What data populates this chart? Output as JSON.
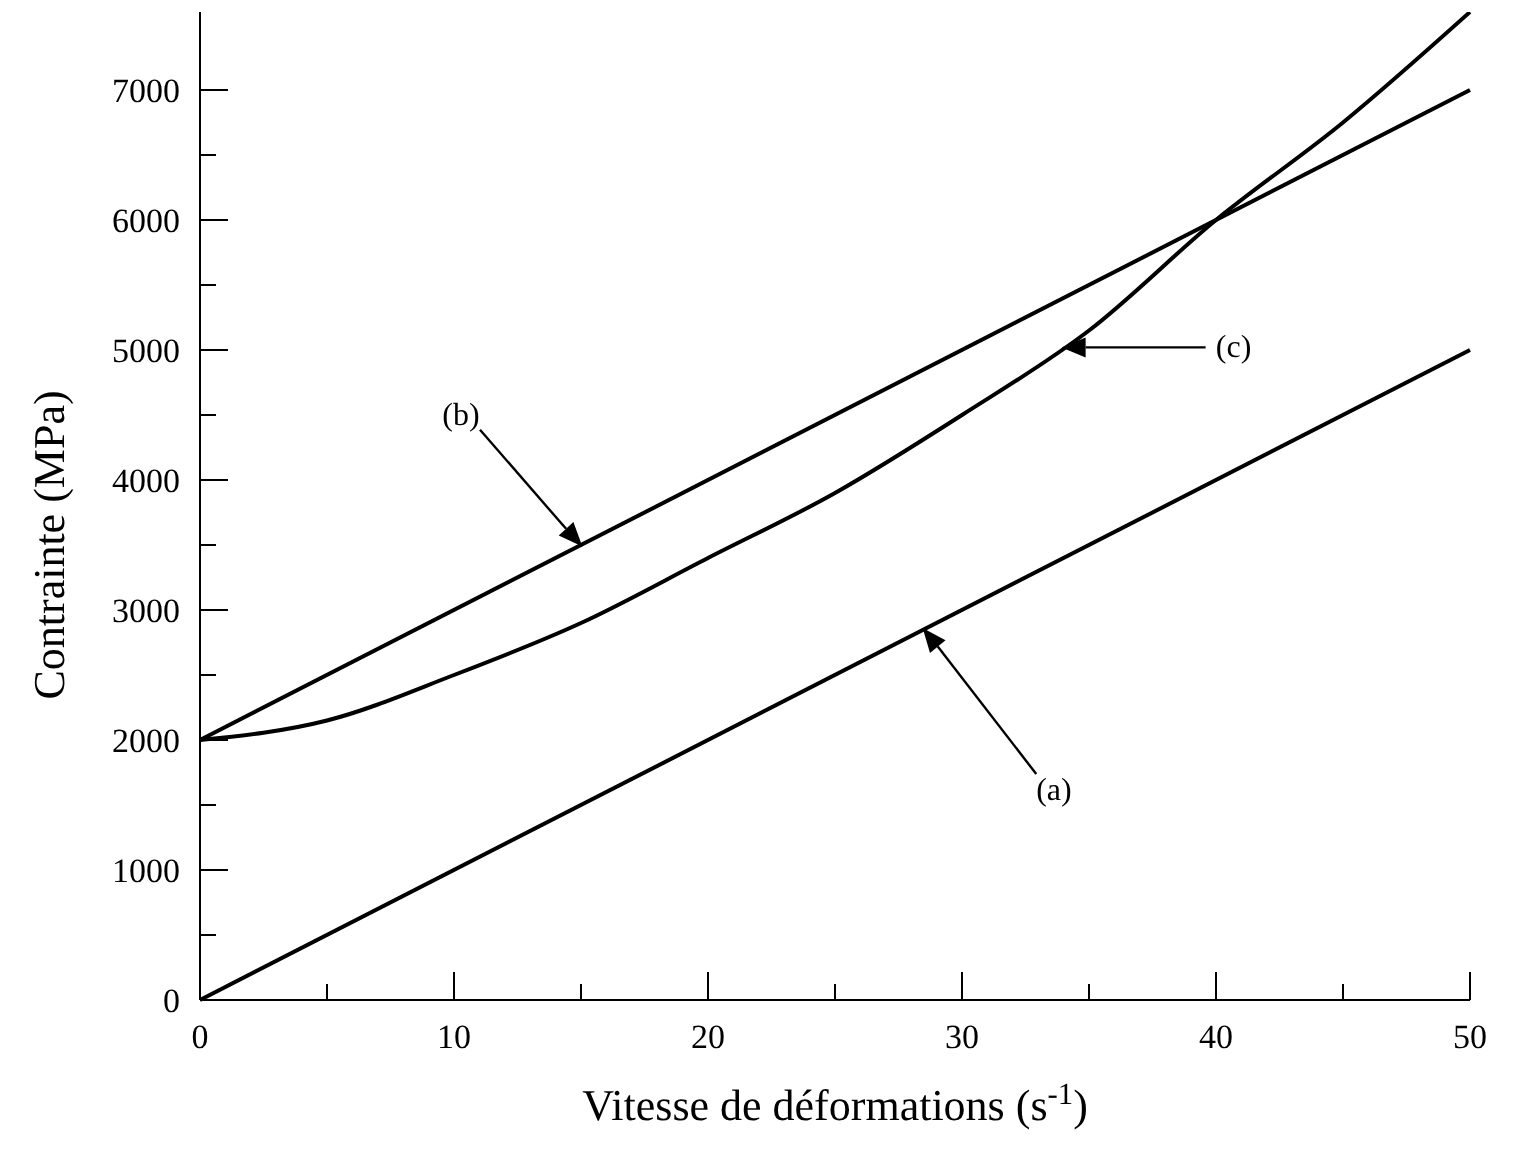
{
  "chart_data": {
    "type": "line",
    "xlabel": "Vitesse de déformations (s$^{-1}$)",
    "ylabel": "Contrainte (MPa)",
    "xlim": [
      0,
      50
    ],
    "ylim": [
      0,
      7600
    ],
    "xticks": [
      0,
      {
        "value": 5,
        "label": null
      },
      10,
      {
        "value": 15,
        "label": null
      },
      20,
      {
        "value": 25,
        "label": null
      },
      30,
      {
        "value": 35,
        "label": null
      },
      40,
      {
        "value": 45,
        "label": null
      },
      50
    ],
    "yticks": [
      0,
      {
        "value": 500,
        "label": null
      },
      1000,
      {
        "value": 1500,
        "label": null
      },
      2000,
      {
        "value": 2500,
        "label": null
      },
      3000,
      {
        "value": 3500,
        "label": null
      },
      4000,
      {
        "value": 4500,
        "label": null
      },
      5000,
      {
        "value": 5500,
        "label": null
      },
      6000,
      {
        "value": 6500,
        "label": null
      },
      7000
    ],
    "grid": false,
    "marker": "none",
    "line_style": "solid",
    "series": [
      {
        "color": "#000000",
        "x": [
          0,
          50
        ],
        "values": [
          0,
          5000
        ]
      },
      {
        "color": "#000000",
        "x": [
          0,
          50
        ],
        "values": [
          2000,
          7000
        ]
      },
      {
        "color": "#000000",
        "x": [
          0,
          5,
          10,
          15,
          20,
          25,
          30,
          35,
          40,
          45,
          50
        ],
        "values": [
          2000,
          2150,
          2500,
          2900,
          3400,
          3900,
          4500,
          5150,
          6000,
          6750,
          7600
        ]
      }
    ],
    "annotations": [
      "(a)",
      "(b)",
      "(c)"
    ]
  }
}
